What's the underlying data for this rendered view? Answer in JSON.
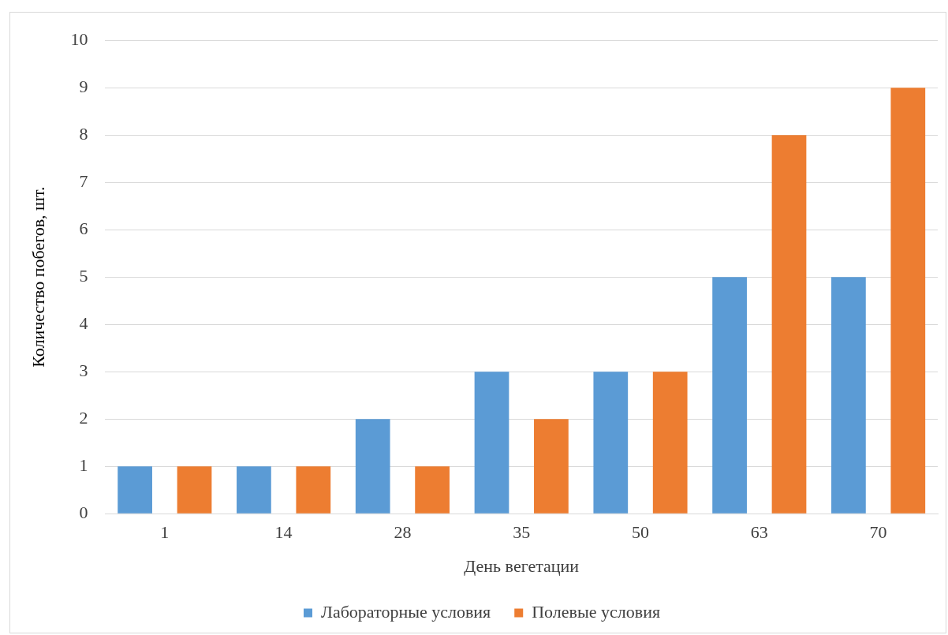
{
  "chart_data": {
    "type": "bar",
    "xlabel": "День вегетации",
    "ylabel": "Количество побегов, шт.",
    "categories": [
      "1",
      "14",
      "28",
      "35",
      "50",
      "63",
      "70"
    ],
    "series": [
      {
        "name": "Лабораторные условия",
        "color": "#5b9bd5",
        "values": [
          1,
          1,
          2,
          3,
          3,
          5,
          5
        ]
      },
      {
        "name": "Полевые условия",
        "color": "#ed7d31",
        "values": [
          1,
          1,
          1,
          2,
          3,
          8,
          9
        ]
      }
    ],
    "ylim": [
      0,
      10
    ],
    "yticks": [
      0,
      1,
      2,
      3,
      4,
      5,
      6,
      7,
      8,
      9,
      10
    ],
    "grid": "y",
    "legend": "bottom"
  }
}
